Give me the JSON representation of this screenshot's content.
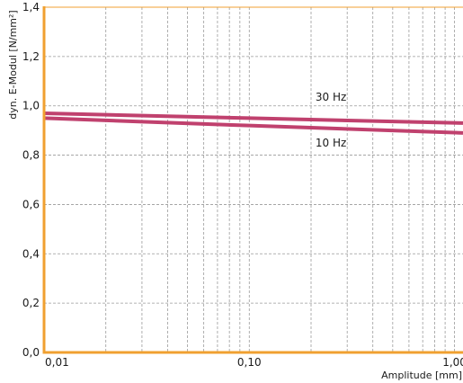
{
  "chart_data": {
    "type": "line",
    "x_scale": "log",
    "xlim": [
      0.01,
      1.1
    ],
    "ylim": [
      0,
      1.4
    ],
    "xlabel": "Amplitude [mm]",
    "ylabel": "dyn. E-Modul [N/mm²]",
    "x_ticks": [
      {
        "value": 0.01,
        "label": "0,01"
      },
      {
        "value": 0.1,
        "label": "0,10"
      },
      {
        "value": 1.0,
        "label": "1,00"
      }
    ],
    "y_ticks": [
      {
        "value": 0.0,
        "label": "0,0"
      },
      {
        "value": 0.2,
        "label": "0,2"
      },
      {
        "value": 0.4,
        "label": "0,4"
      },
      {
        "value": 0.6,
        "label": "0,6"
      },
      {
        "value": 0.8,
        "label": "0,8"
      },
      {
        "value": 1.0,
        "label": "1,0"
      },
      {
        "value": 1.2,
        "label": "1,2"
      },
      {
        "value": 1.4,
        "label": "1,4"
      }
    ],
    "grid": true,
    "series": [
      {
        "name": "30 Hz",
        "x": [
          0.01,
          0.1,
          1.1
        ],
        "y": [
          0.97,
          0.95,
          0.93
        ],
        "color": "#c0416e"
      },
      {
        "name": "10 Hz",
        "x": [
          0.01,
          0.1,
          1.1
        ],
        "y": [
          0.95,
          0.92,
          0.89
        ],
        "color": "#c0416e"
      }
    ],
    "axis_color": "#f0a030"
  }
}
